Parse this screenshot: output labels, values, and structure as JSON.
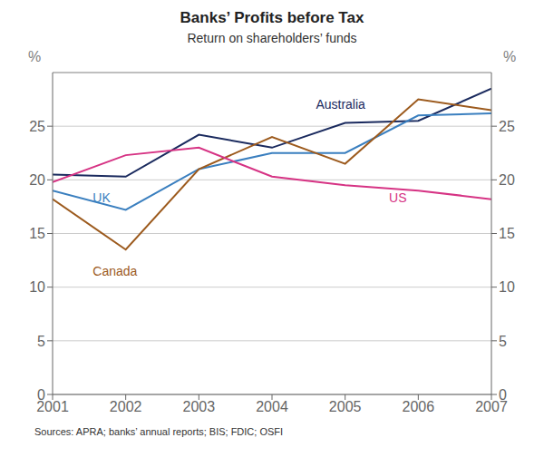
{
  "chart_data": {
    "type": "line",
    "title": "Banks’ Profits before Tax",
    "subtitle": "Return on shareholders’ funds",
    "annotations": [
      "Sources: APRA; banks’ annual reports; BIS; FDIC; OSFI"
    ],
    "y_label": "%",
    "y2_label": "%",
    "x": [
      2001,
      2002,
      2003,
      2004,
      2005,
      2006,
      2007
    ],
    "xlim": [
      2001,
      2007
    ],
    "xticks": [
      2001,
      2002,
      2003,
      2004,
      2005,
      2006,
      2007
    ],
    "ylim": [
      0,
      30
    ],
    "yticks": [
      0,
      5,
      10,
      15,
      20,
      25
    ],
    "y2lim": [
      0,
      30
    ],
    "y2ticks": [
      0,
      5,
      10,
      15,
      20,
      25
    ],
    "grid": true,
    "series": [
      {
        "name": "Australia",
        "color": "#1a2a5e",
        "values": [
          20.5,
          20.3,
          24.2,
          23.0,
          25.3,
          25.5,
          28.5
        ]
      },
      {
        "name": "UK",
        "color": "#3a7fbf",
        "values": [
          19.0,
          17.2,
          21.0,
          22.5,
          22.5,
          26.0,
          26.2
        ]
      },
      {
        "name": "Canada",
        "color": "#9c5a1d",
        "values": [
          18.2,
          13.5,
          21.0,
          24.0,
          21.5,
          27.5,
          26.5
        ]
      },
      {
        "name": "US",
        "color": "#d63384",
        "values": [
          19.8,
          22.3,
          23.0,
          20.3,
          19.5,
          19.0,
          18.2
        ]
      }
    ]
  }
}
